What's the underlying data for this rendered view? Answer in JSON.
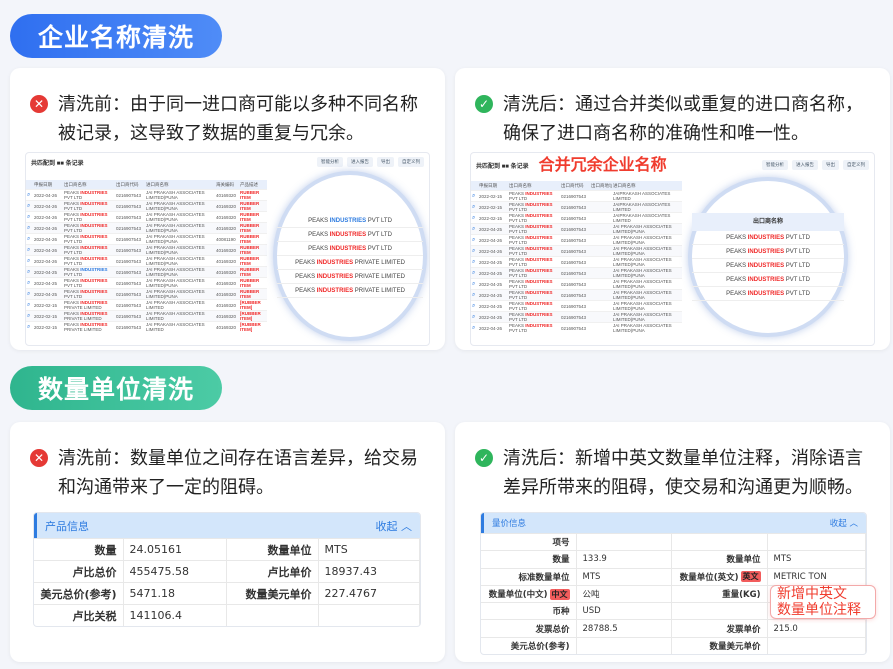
{
  "section1": {
    "title": "企业名称清洗",
    "before": {
      "icon": "x-circle-icon",
      "text": "清洗前：由于同一进口商可能以多种不同名称被记录，这导致了数据的重复与冗余。"
    },
    "after": {
      "icon": "check-circle-icon",
      "text": "清洗后：通过合并类似或重复的进口商名称，确保了进口商名称的准确性和唯一性。",
      "highlight": "合并冗余企业名称"
    },
    "toolbar": {
      "title": "共匹配到 ■■ 条记录",
      "smart": "智能分析",
      "report": "进入报告",
      "export": "导出",
      "custom": "自定义列"
    },
    "before_table": {
      "headers": [
        "",
        "申报日期",
        "出口商名称",
        "出口商代码",
        "进口商名称",
        "海关编码",
        "产品描述"
      ],
      "rows": [
        [
          "2022-04-26",
          "PVT LTD",
          "0216907543",
          "JAI PRAKASH ASSOCIATES LIMITED(PUNA",
          "40169320",
          "RUBBER ITEM"
        ],
        [
          "2022-04-26",
          "PVT LTD",
          "0216907543",
          "JAI PRAKASH ASSOCIATES LIMITED(PUNA",
          "40169320",
          "RUBBER ITEM"
        ],
        [
          "2022-04-26",
          "PVT LTD",
          "0216907543",
          "JAI PRAKASH ASSOCIATES LIMITED(PUNA",
          "40169320",
          "RUBBER ITEM"
        ],
        [
          "2022-04-26",
          "PVT LTD",
          "0216907543",
          "JAI PRAKASH ASSOCIATES LIMITED(PUNA",
          "40169320",
          "RUBBER ITEM"
        ],
        [
          "2022-04-26",
          "PVT LTD",
          "0216907543",
          "JAI PRAKASH ASSOCIATES LIMITED(PUNA",
          "40081190",
          "RUBBER ITEM"
        ],
        [
          "2022-04-26",
          "PVT LTD",
          "0216907543",
          "JAI PRAKASH ASSOCIATES LIMITED(PUNA",
          "40169320",
          "RUBBER ITEM"
        ],
        [
          "2022-04-26",
          "PVT LTD",
          "0216907543",
          "JAI PRAKASH ASSOCIATES LIMITED(PUNA",
          "40169320",
          "RUBBER ITEM"
        ],
        [
          "2022-04-25",
          "PVT LTD",
          "0216907543",
          "JAI PRAKASH ASSOCIATES LIMITED(PUNA",
          "40169320",
          "RUBBER ITEM"
        ],
        [
          "2022-04-25",
          "PVT LTD",
          "0216907543",
          "JAI PRAKASH ASSOCIATES LIMITED(PUNA",
          "40169320",
          "RUBBER ITEM"
        ],
        [
          "2022-04-25",
          "PVT LTD",
          "0216907543",
          "JAI PRAKASH ASSOCIATES LIMITED(PUNA",
          "40169320",
          "RUBBER ITEM"
        ],
        [
          "2022-02-15",
          "PRIVATE LIMITED",
          "0216907543",
          "JAI PRAKASH ASSOCIATES LIMITED",
          "40169320",
          "[RUBBER ITEM]"
        ],
        [
          "2022-02-15",
          "PRIVATE LIMITED",
          "0216907543",
          "JAI PRAKASH ASSOCIATES LIMITED",
          "40169320",
          "[RUBBER ITEM]"
        ],
        [
          "2022-02-15",
          "PRIVATE LIMITED",
          "0216907543",
          "JAI PRAKASH ASSOCIATES LIMITED",
          "40169320",
          "[RUBBER ITEM]"
        ]
      ]
    },
    "before_lens": {
      "header": "",
      "lines": [
        "PVT LTD",
        "PVT LTD",
        "PVT LTD",
        "PRIVATE LIMITED",
        "PRIVATE LIMITED",
        "PRIVATE LIMITED"
      ]
    },
    "company_prefix": "PEAKS",
    "company_mid": "INDUSTRIES",
    "after_table": {
      "headers": [
        "",
        "申报日期",
        "出口商名称",
        "出口商代码",
        "出口商地址",
        "进口商名称"
      ],
      "rows": [
        [
          "2022-02-15",
          "0216907543",
          "JAIPRAKASH ASSOCIATES LIMITED"
        ],
        [
          "2022-02-15",
          "0216907543",
          "JAIPRAKASH ASSOCIATES LIMITED"
        ],
        [
          "2022-02-15",
          "0216907543",
          "JAIPRAKASH ASSOCIATES LIMITED"
        ],
        [
          "2022-04-25",
          "0216907543",
          "JAI PRAKASH ASSOCIATES LIMITED(PUNA"
        ],
        [
          "2022-04-26",
          "0216907543",
          "JAI PRAKASH ASSOCIATES LIMITED(PUNA"
        ],
        [
          "2022-04-26",
          "0216907543",
          "JAI PRAKASH ASSOCIATES LIMITED(PUNA"
        ],
        [
          "2022-04-25",
          "0216907543",
          "JAI PRAKASH ASSOCIATES LIMITED(PUNA"
        ],
        [
          "2022-04-25",
          "0216907543",
          "JAI PRAKASH ASSOCIATES LIMITED(PUNA"
        ],
        [
          "2022-04-25",
          "0216907543",
          "JAI PRAKASH ASSOCIATES LIMITED(PUNA"
        ],
        [
          "2022-04-25",
          "0216907543",
          "JAI PRAKASH ASSOCIATES LIMITED(PUNA"
        ],
        [
          "2022-04-25",
          "0216907543",
          "JAI PRAKASH ASSOCIATES LIMITED(PUNA"
        ],
        [
          "2022-04-25",
          "0216907543",
          "JAI PRAKASH ASSOCIATES LIMITED(PUNA"
        ],
        [
          "2022-04-26",
          "0216907543",
          "JAI PRAKASH ASSOCIATES LIMITED(PUNA"
        ]
      ],
      "name_suffix": "PVT LTD"
    },
    "after_lens": {
      "header": "出口商名称",
      "lines": [
        "PVT LTD",
        "PVT LTD",
        "PVT LTD",
        "PVT LTD",
        "PVT LTD"
      ]
    }
  },
  "section2": {
    "title": "数量单位清洗",
    "before": {
      "icon": "x-circle-icon",
      "text": "清洗前：数量单位之间存在语言差异，给交易和沟通带来了一定的阻碍。"
    },
    "after": {
      "icon": "check-circle-icon",
      "text": "清洗后：新增中英文数量单位注释，消除语言差异所带来的阻碍，使交易和沟通更为顺畅。"
    },
    "before_panel": {
      "title": "产品信息",
      "collapse": "收起 ︿",
      "rows": [
        [
          "数量",
          "24.05161",
          "数量单位",
          "MTS"
        ],
        [
          "卢比总价",
          "455475.58",
          "卢比单价",
          "18937.43"
        ],
        [
          "美元总价(参考)",
          "5471.18",
          "数量美元单价",
          "227.4767"
        ],
        [
          "卢比关税",
          "141106.4",
          "",
          ""
        ]
      ]
    },
    "after_panel": {
      "title": "量价信息",
      "collapse": "收起 ︿",
      "rows": [
        [
          "项号",
          "",
          "",
          ""
        ],
        [
          "数量",
          "133.9",
          "数量单位",
          "MTS"
        ],
        [
          "标准数量单位",
          "MTS",
          "数量单位(英文)",
          "METRIC TON"
        ],
        [
          "数量单位(中文)",
          "公吨",
          "重量(KG)",
          ""
        ],
        [
          "币种",
          "USD",
          "",
          ""
        ],
        [
          "发票总价",
          "28788.5",
          "发票单价",
          "215.0"
        ],
        [
          "美元总价(参考)",
          "",
          "数量美元单价",
          ""
        ]
      ],
      "tag_en": "英文",
      "tag_cn": "中文",
      "callout": "新增中英文\n数量单位注释"
    }
  }
}
